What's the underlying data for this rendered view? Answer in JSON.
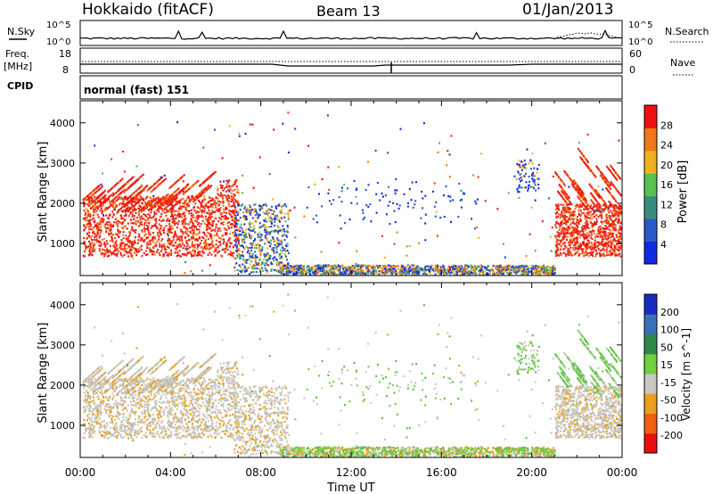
{
  "header": {
    "station": "Hokkaido (fitACF)",
    "beam": "Beam 13",
    "date": "01/Jan/2013"
  },
  "strips": {
    "nsky": {
      "left_label": "N.Sky",
      "right_label": "N.Search",
      "tick_top": "10^5",
      "tick_bottom": "10^0"
    },
    "freq": {
      "left_label_top": "Freq.",
      "left_label_bottom": "[MHz]",
      "right_label": "Nave",
      "left_ticks": [
        "18",
        "8"
      ],
      "right_ticks": [
        "60",
        "0"
      ]
    },
    "cpid": {
      "left_label": "CPID",
      "value": "normal (fast) 151"
    }
  },
  "chart_data": [
    {
      "type": "heatmap",
      "name": "power",
      "ylabel": "Slant Range [km]",
      "yticks": [
        "1000",
        "2000",
        "3000",
        "4000"
      ],
      "ylim": [
        200,
        4550
      ],
      "colorbar_label": "Power [dB]",
      "colorbar_ticks": [
        "4",
        "8",
        "12",
        "16",
        "20",
        "24",
        "28"
      ],
      "colorbar_colors": [
        "#1228e0",
        "#2a5ac8",
        "#3a8c7a",
        "#58c050",
        "#f0b020",
        "#f07818",
        "#ee1010"
      ],
      "clim": [
        0,
        32
      ]
    },
    {
      "type": "heatmap",
      "name": "velocity",
      "ylabel": "Slant Range [km]",
      "yticks": [
        "1000",
        "2000",
        "3000",
        "4000"
      ],
      "ylim": [
        200,
        4550
      ],
      "colorbar_label": "Velocity [m s^-1]",
      "colorbar_ticks": [
        "200",
        "100",
        "50",
        "15",
        "-15",
        "-50",
        "-100",
        "-200"
      ],
      "colorbar_colors": [
        "#1a2cc0",
        "#3a70b8",
        "#2a8a4a",
        "#70d040",
        "#c8c8c0",
        "#e8a020",
        "#f06010",
        "#e81010"
      ]
    }
  ],
  "xaxis": {
    "label": "Time UT",
    "ticks": [
      "00:00",
      "04:00",
      "08:00",
      "12:00",
      "16:00",
      "20:00",
      "00:00"
    ]
  }
}
